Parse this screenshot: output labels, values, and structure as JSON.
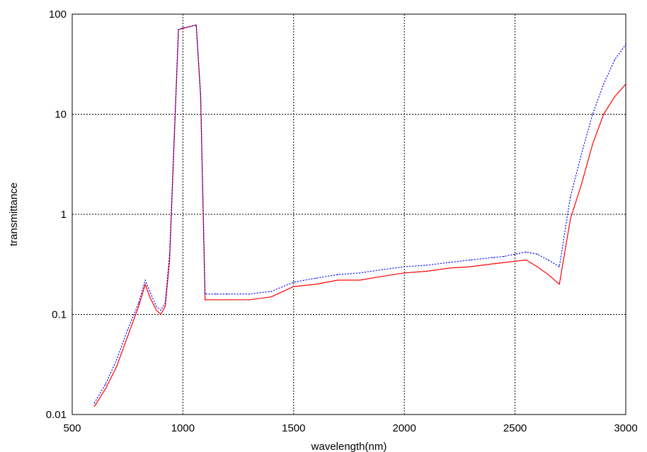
{
  "chart_data": {
    "type": "line",
    "title": "",
    "xlabel": "wavelength(nm)",
    "ylabel": "transmittance",
    "xlim": [
      500,
      3000
    ],
    "ylim": [
      0.01,
      100
    ],
    "yscale": "log",
    "grid": true,
    "legend": "none",
    "x_ticks": [
      "500",
      "1000",
      "1500",
      "2000",
      "2500",
      "3000"
    ],
    "y_ticks": [
      "0.01",
      "0.1",
      "1",
      "10",
      "100"
    ],
    "series": [
      {
        "color": "#ff0000",
        "style": "solid",
        "x": [
          600,
          650,
          700,
          750,
          800,
          830,
          850,
          880,
          900,
          920,
          940,
          960,
          980,
          1000,
          1030,
          1060,
          1080,
          1100,
          1150,
          1200,
          1300,
          1400,
          1500,
          1600,
          1700,
          1800,
          1900,
          2000,
          2100,
          2200,
          2300,
          2400,
          2450,
          2500,
          2550,
          2600,
          2650,
          2700,
          2750,
          2800,
          2850,
          2900,
          2950,
          3000
        ],
        "y": [
          0.012,
          0.018,
          0.03,
          0.06,
          0.12,
          0.2,
          0.15,
          0.11,
          0.1,
          0.12,
          0.35,
          5,
          70,
          72,
          75,
          78,
          15,
          0.14,
          0.14,
          0.14,
          0.14,
          0.15,
          0.19,
          0.2,
          0.22,
          0.22,
          0.24,
          0.26,
          0.27,
          0.29,
          0.3,
          0.32,
          0.33,
          0.34,
          0.35,
          0.3,
          0.25,
          0.2,
          0.9,
          2,
          5,
          10,
          15,
          20
        ]
      },
      {
        "color": "#0000ff",
        "style": "dotted",
        "x": [
          600,
          650,
          700,
          750,
          800,
          830,
          850,
          880,
          900,
          920,
          940,
          960,
          980,
          1000,
          1030,
          1060,
          1080,
          1100,
          1150,
          1200,
          1300,
          1400,
          1500,
          1600,
          1700,
          1800,
          1900,
          2000,
          2100,
          2200,
          2300,
          2400,
          2450,
          2500,
          2550,
          2600,
          2650,
          2700,
          2750,
          2800,
          2850,
          2900,
          2950,
          3000
        ],
        "y": [
          0.013,
          0.02,
          0.035,
          0.07,
          0.13,
          0.22,
          0.17,
          0.12,
          0.11,
          0.13,
          0.4,
          5.5,
          70,
          73,
          75,
          78,
          16,
          0.16,
          0.16,
          0.16,
          0.16,
          0.17,
          0.21,
          0.23,
          0.25,
          0.26,
          0.28,
          0.3,
          0.31,
          0.33,
          0.35,
          0.37,
          0.38,
          0.4,
          0.42,
          0.4,
          0.35,
          0.3,
          1.5,
          4,
          10,
          20,
          35,
          50
        ]
      }
    ]
  }
}
